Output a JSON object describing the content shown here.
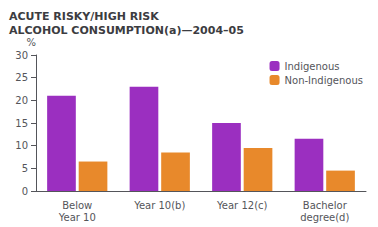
{
  "chart_data": {
    "type": "bar",
    "title": "ACUTE RISKY/HIGH RISK\nALCOHOL CONSUMPTION(a)—2004–05",
    "y_label": "%",
    "categories": [
      "Below\nYear 10",
      "Year 10(b)",
      "Year 12(c)",
      "Bachelor\ndegree(d)"
    ],
    "series": [
      {
        "name": "Indigenous",
        "color": "#9B2FC0",
        "values": [
          21.0,
          23.0,
          15.0,
          11.5
        ]
      },
      {
        "name": "Non-Indigenous",
        "color": "#E8892B",
        "values": [
          6.5,
          8.5,
          9.5,
          4.5
        ]
      }
    ],
    "ylim": [
      0,
      30
    ],
    "yticks": [
      0,
      5,
      10,
      15,
      20,
      25,
      30
    ],
    "grid": false,
    "legend": "upper right"
  }
}
